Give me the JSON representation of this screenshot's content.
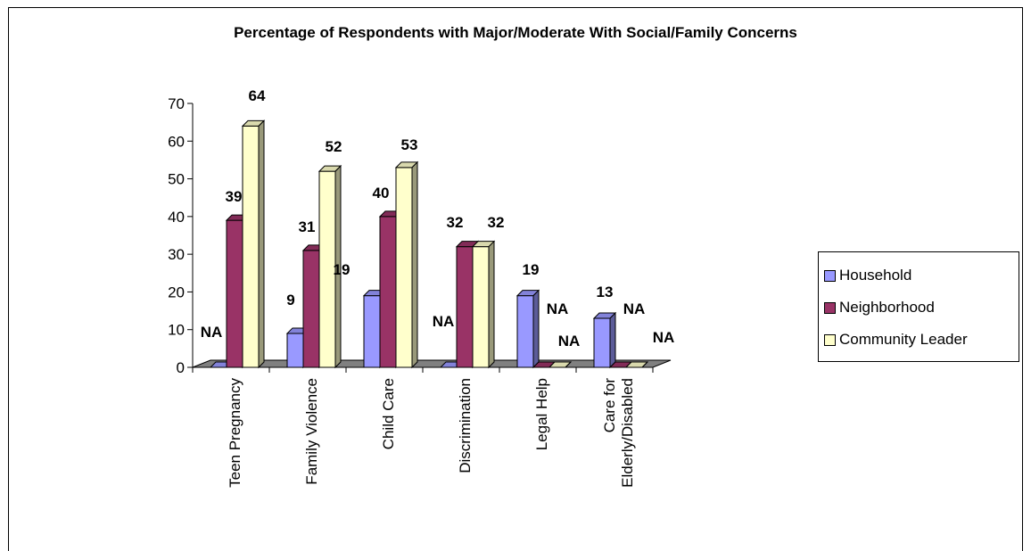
{
  "chart_data": {
    "type": "bar",
    "title": "Percentage of Respondents with Major/Moderate With Social/Family Concerns",
    "categories": [
      "Teen Pregnancy",
      "Family Violence",
      "Child Care",
      "Discrimination",
      "Legal Help",
      "Care for\nElderly/Disabled"
    ],
    "series": [
      {
        "name": "Household",
        "color": "#9999ff",
        "values": [
          null,
          9,
          19,
          null,
          19,
          13
        ],
        "labels": [
          "NA",
          "9",
          "19",
          "NA",
          "19",
          "13"
        ]
      },
      {
        "name": "Neighborhood",
        "color": "#993366",
        "values": [
          39,
          31,
          40,
          32,
          null,
          null
        ],
        "labels": [
          "39",
          "31",
          "40",
          "32",
          "NA",
          "NA"
        ]
      },
      {
        "name": "Community Leader",
        "color": "#ffffcc",
        "values": [
          64,
          52,
          53,
          32,
          null,
          null
        ],
        "labels": [
          "64",
          "52",
          "53",
          "32",
          "NA",
          "NA"
        ]
      }
    ],
    "yticks": [
      "0",
      "10",
      "20",
      "30",
      "40",
      "50",
      "60",
      "70"
    ],
    "ylim": [
      0,
      70
    ],
    "grid": false,
    "legend_position": "right",
    "style": "3d-clustered-column"
  }
}
